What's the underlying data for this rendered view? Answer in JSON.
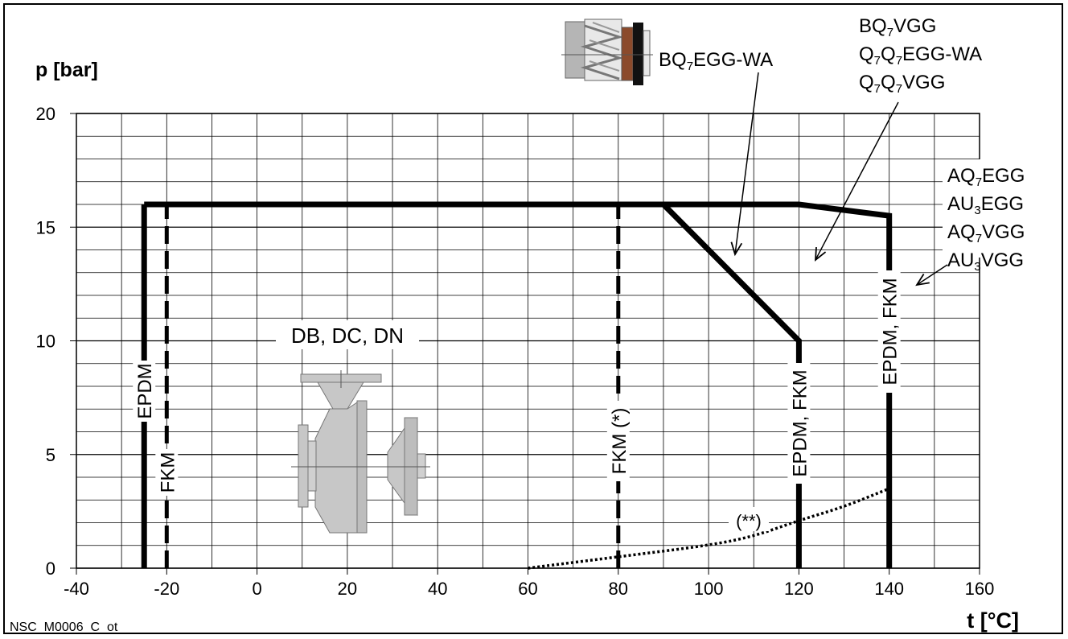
{
  "chart_data": {
    "type": "line",
    "ylabel": "p [bar]",
    "xlabel": "t [°C]",
    "xlim": [
      -40,
      160
    ],
    "ylim": [
      0,
      20
    ],
    "x_ticks": [
      -40,
      -20,
      0,
      20,
      40,
      60,
      80,
      100,
      120,
      140,
      160
    ],
    "y_ticks": [
      0,
      5,
      10,
      15,
      20
    ],
    "grid": true,
    "series": [
      {
        "name": "EPDM",
        "points": [
          [
            -25,
            0
          ],
          [
            -25,
            16
          ]
        ]
      },
      {
        "points": [
          [
            -25,
            16
          ],
          [
            120,
            16
          ],
          [
            140,
            15.5
          ],
          [
            140,
            0
          ]
        ]
      },
      {
        "points": [
          [
            90,
            16
          ],
          [
            120,
            10
          ],
          [
            120,
            0
          ]
        ]
      },
      {
        "name": "FKM",
        "style": "dashed",
        "points": [
          [
            -20,
            0
          ],
          [
            -20,
            16
          ]
        ]
      },
      {
        "name": "FKM (*)",
        "style": "dashed",
        "points": [
          [
            80,
            0
          ],
          [
            80,
            16
          ]
        ]
      },
      {
        "name": "(**)",
        "style": "dotted",
        "points": [
          [
            60,
            0
          ],
          [
            80,
            0.5
          ],
          [
            100,
            1
          ],
          [
            110,
            1.4
          ],
          [
            120,
            2.1
          ],
          [
            130,
            2.7
          ],
          [
            140,
            3.5
          ]
        ]
      }
    ],
    "annotations": {
      "epdm_left": "EPDM",
      "fkm_left": "FKM",
      "fkm_star": "FKM (*)",
      "epdm_fkm_120": "EPDM, FKM",
      "epdm_fkm_140": "EPDM, FKM",
      "pump_label": "DB, DC, DN",
      "dotted_label": "(**)",
      "seal_wa": {
        "base": "BQ",
        "sub": "7",
        "rest": "EGG-WA"
      },
      "seal_group_b": [
        [
          {
            "t": "BQ"
          },
          {
            "t": "7",
            "sub": true
          },
          {
            "t": "VGG"
          }
        ],
        [
          {
            "t": "Q"
          },
          {
            "t": "7",
            "sub": true
          },
          {
            "t": "Q"
          },
          {
            "t": "7",
            "sub": true
          },
          {
            "t": "EGG-WA"
          }
        ],
        [
          {
            "t": "Q"
          },
          {
            "t": "7",
            "sub": true
          },
          {
            "t": "Q"
          },
          {
            "t": "7",
            "sub": true
          },
          {
            "t": "VGG"
          }
        ]
      ],
      "seal_group_a": [
        [
          {
            "t": "AQ"
          },
          {
            "t": "7",
            "sub": true
          },
          {
            "t": "EGG"
          }
        ],
        [
          {
            "t": "AU"
          },
          {
            "t": "3",
            "sub": true
          },
          {
            "t": "EGG"
          }
        ],
        [
          {
            "t": "AQ"
          },
          {
            "t": "7",
            "sub": true
          },
          {
            "t": "VGG"
          }
        ],
        [
          {
            "t": "AU"
          },
          {
            "t": "3",
            "sub": true
          },
          {
            "t": "VGG"
          }
        ]
      ]
    },
    "footer_code": "NSC_M0006_C_ot"
  },
  "icons": [
    "mechanical-seal-icon",
    "pump-icon"
  ],
  "colors": {
    "line": "#000000",
    "grid": "#000000",
    "seal_brown": "#8b4a2b",
    "pump_gray": "#bdbdbd"
  }
}
